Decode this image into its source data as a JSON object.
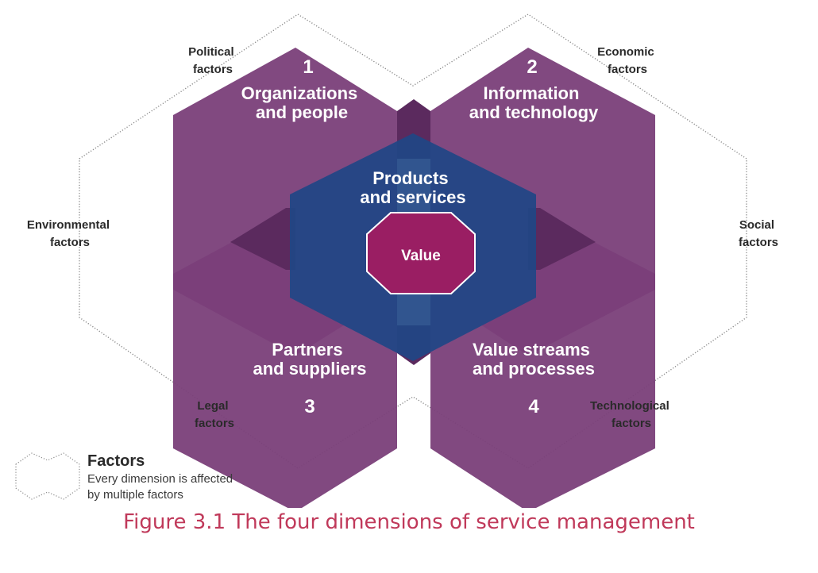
{
  "colors": {
    "dimension_fill": "#7a3f79",
    "overlap_fill": "#5b2a5e",
    "center_fill": "#1f4785",
    "value_fill": "#9a1e63",
    "outline": "#8a8a8a",
    "caption": "#c0395a"
  },
  "factors": {
    "political": [
      "Political",
      "factors"
    ],
    "economic": [
      "Economic",
      "factors"
    ],
    "environmental": [
      "Environmental",
      "factors"
    ],
    "social": [
      "Social",
      "factors"
    ],
    "legal": [
      "Legal",
      "factors"
    ],
    "technological": [
      "Technological",
      "factors"
    ]
  },
  "dimensions": [
    {
      "number": "1",
      "lines": [
        "Organizations",
        "and people"
      ]
    },
    {
      "number": "2",
      "lines": [
        "Information",
        "and technology"
      ]
    },
    {
      "number": "3",
      "lines": [
        "Partners",
        "and suppliers"
      ]
    },
    {
      "number": "4",
      "lines": [
        "Value streams",
        "and processes"
      ]
    }
  ],
  "center": {
    "lines": [
      "Products",
      "and services"
    ],
    "value": "Value"
  },
  "legend": {
    "title": "Factors",
    "description": [
      "Every dimension is affected",
      "by multiple factors"
    ]
  },
  "caption": "Figure 3.1 The four dimensions of service management"
}
